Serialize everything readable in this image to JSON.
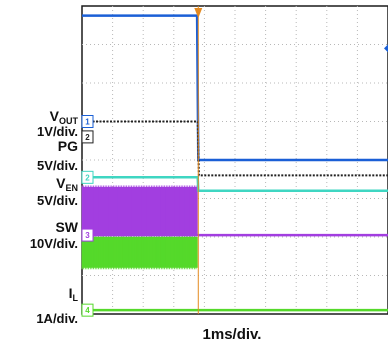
{
  "chart_data": {
    "type": "line",
    "title": "",
    "xlabel": "1ms/div.",
    "ylabel": "",
    "x_divisions": 10,
    "y_divisions": 8,
    "grid": true,
    "x_range_divisions": [
      0,
      10
    ],
    "trigger_at_division": 3.8,
    "channels": [
      {
        "id": "vout",
        "name_main": "V",
        "name_sub": "OUT",
        "scale": "1V/div.",
        "marker": "1",
        "color": "#1a5fd6",
        "ref_level_div": 5.0,
        "points": [
          [
            0,
            7.75
          ],
          [
            3.76,
            7.75
          ],
          [
            3.8,
            4.0
          ],
          [
            10,
            4.0
          ]
        ]
      },
      {
        "id": "pg",
        "name_main": "PG",
        "name_sub": "",
        "scale": "5V/div.",
        "marker": "2",
        "color": "#222222",
        "ref_level_div": 4.6,
        "points": [
          [
            0,
            5.0
          ],
          [
            3.78,
            5.0
          ],
          [
            3.82,
            3.6
          ],
          [
            10,
            3.6
          ]
        ]
      },
      {
        "id": "ven",
        "name_main": "V",
        "name_sub": "EN",
        "scale": "5V/div.",
        "marker": "2",
        "color": "#3fd6c2",
        "ref_level_div": 3.55,
        "points": [
          [
            0,
            3.55
          ],
          [
            3.78,
            3.55
          ],
          [
            3.8,
            3.2
          ],
          [
            10,
            3.2
          ]
        ]
      },
      {
        "id": "sw",
        "name_main": "SW",
        "name_sub": "",
        "scale": "10V/div.",
        "marker": "3",
        "color": "#a23ee0",
        "ref_level_div": 2.05,
        "band_low_div": 2.05,
        "band_high_div": 3.3,
        "switching_end_div": 3.78,
        "points": [
          [
            0,
            2.05
          ],
          [
            3.78,
            2.05
          ],
          [
            3.9,
            2.05
          ],
          [
            10,
            2.05
          ]
        ]
      },
      {
        "id": "il",
        "name_main": "I",
        "name_sub": "L",
        "scale": "1A/div.",
        "marker": "4",
        "color": "#55d92a",
        "ref_level_div": 0.1,
        "band_low_div": 1.2,
        "band_high_div": 2.0,
        "switching_end_div": 3.78,
        "points": [
          [
            0,
            0.1
          ],
          [
            3.78,
            0.1
          ],
          [
            3.8,
            0.1
          ],
          [
            10,
            0.1
          ]
        ]
      }
    ]
  }
}
